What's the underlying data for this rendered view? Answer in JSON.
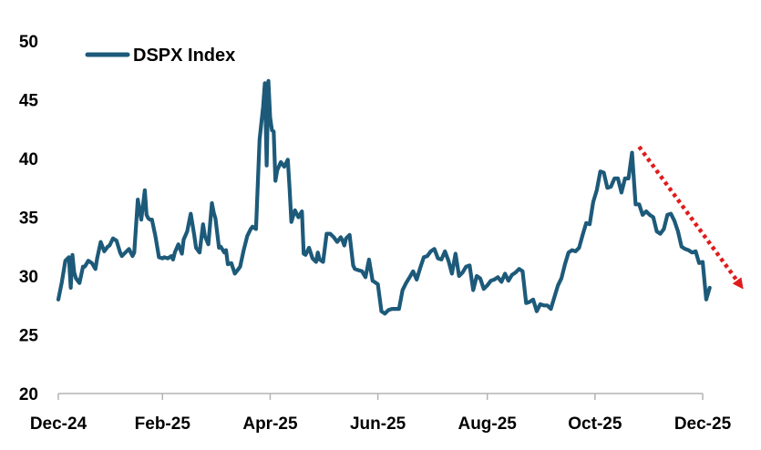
{
  "chart_data": {
    "type": "line",
    "title": "",
    "xlabel": "",
    "ylabel": "",
    "ylim": [
      20,
      50
    ],
    "yticks": [
      20,
      25,
      30,
      35,
      40,
      45,
      50
    ],
    "xlim": [
      "2024-12-31",
      "2025-12-31"
    ],
    "xticks": [
      {
        "date": "2024-12-31",
        "label": "Dec-24"
      },
      {
        "date": "2025-02-28",
        "label": "Feb-25"
      },
      {
        "date": "2025-04-30",
        "label": "Apr-25"
      },
      {
        "date": "2025-06-30",
        "label": "Jun-25"
      },
      {
        "date": "2025-08-31",
        "label": "Aug-25"
      },
      {
        "date": "2025-10-31",
        "label": "Oct-25"
      },
      {
        "date": "2025-12-31",
        "label": "Dec-25"
      }
    ],
    "grid": false,
    "legend": {
      "position": "top-left",
      "entries": [
        "DSPX Index"
      ]
    },
    "colors": {
      "series": "#1d5a7a",
      "trend_arrow": "#e11b1b",
      "axis": "#b3b3b3"
    },
    "annotations": [
      {
        "type": "dotted-arrow",
        "from": {
          "x": "2025-11-25",
          "y": 41
        },
        "to": {
          "x": "2026-01-20",
          "y": 29.5
        }
      }
    ],
    "series": [
      {
        "name": "DSPX Index",
        "x": [
          "2024-12-31",
          "2025-01-02",
          "2025-01-04",
          "2025-01-06",
          "2025-01-07",
          "2025-01-08",
          "2025-01-09",
          "2025-01-10",
          "2025-01-12",
          "2025-01-14",
          "2025-01-15",
          "2025-01-17",
          "2025-01-19",
          "2025-01-21",
          "2025-01-22",
          "2025-01-24",
          "2025-01-26",
          "2025-01-28",
          "2025-01-29",
          "2025-01-31",
          "2025-02-02",
          "2025-02-04",
          "2025-02-05",
          "2025-02-07",
          "2025-02-09",
          "2025-02-11",
          "2025-02-12",
          "2025-02-14",
          "2025-02-16",
          "2025-02-18",
          "2025-02-19",
          "2025-02-20",
          "2025-02-21",
          "2025-02-22",
          "2025-02-24",
          "2025-02-26",
          "2025-02-28",
          "2025-03-01",
          "2025-03-03",
          "2025-03-05",
          "2025-03-06",
          "2025-03-07",
          "2025-03-09",
          "2025-03-11",
          "2025-03-12",
          "2025-03-14",
          "2025-03-16",
          "2025-03-18",
          "2025-03-19",
          "2025-03-21",
          "2025-03-22",
          "2025-03-23",
          "2025-03-24",
          "2025-03-26",
          "2025-03-28",
          "2025-03-29",
          "2025-03-30",
          "2025-04-01",
          "2025-04-02",
          "2025-04-04",
          "2025-04-05",
          "2025-04-06",
          "2025-04-08",
          "2025-04-10",
          "2025-04-12",
          "2025-04-13",
          "2025-04-15",
          "2025-04-17",
          "2025-04-19",
          "2025-04-20",
          "2025-04-22",
          "2025-04-24",
          "2025-04-26",
          "2025-04-27",
          "2025-04-28",
          "2025-04-29",
          "2025-04-30",
          "2025-05-01",
          "2025-05-02",
          "2025-05-03",
          "2025-05-04",
          "2025-05-06",
          "2025-05-08",
          "2025-05-10",
          "2025-05-11",
          "2025-05-12",
          "2025-05-14",
          "2025-05-16",
          "2025-05-18",
          "2025-05-19",
          "2025-05-20",
          "2025-05-22",
          "2025-05-24",
          "2025-05-26",
          "2025-05-27",
          "2025-05-28",
          "2025-05-30",
          "2025-06-01",
          "2025-06-03",
          "2025-06-05",
          "2025-06-07",
          "2025-06-09",
          "2025-06-10",
          "2025-06-11",
          "2025-06-12",
          "2025-06-14",
          "2025-06-16",
          "2025-06-17",
          "2025-06-19",
          "2025-06-21",
          "2025-06-23",
          "2025-06-25",
          "2025-06-27",
          "2025-06-28",
          "2025-06-30",
          "2025-07-02",
          "2025-07-04",
          "2025-07-06",
          "2025-07-08",
          "2025-07-10",
          "2025-07-12",
          "2025-07-14",
          "2025-07-16",
          "2025-07-18",
          "2025-07-20",
          "2025-07-22",
          "2025-07-24",
          "2025-07-26",
          "2025-07-28",
          "2025-07-30",
          "2025-08-01",
          "2025-08-03",
          "2025-08-05",
          "2025-08-07",
          "2025-08-09",
          "2025-08-11",
          "2025-08-13",
          "2025-08-15",
          "2025-08-17",
          "2025-08-19",
          "2025-08-21",
          "2025-08-23",
          "2025-08-25",
          "2025-08-27",
          "2025-08-29",
          "2025-08-31",
          "2025-09-02",
          "2025-09-04",
          "2025-09-06",
          "2025-09-08",
          "2025-09-10",
          "2025-09-12",
          "2025-09-14",
          "2025-09-16",
          "2025-09-18",
          "2025-09-20",
          "2025-09-22",
          "2025-09-24",
          "2025-09-26",
          "2025-09-28",
          "2025-09-30",
          "2025-10-02",
          "2025-10-04",
          "2025-10-06",
          "2025-10-08",
          "2025-10-10",
          "2025-10-12",
          "2025-10-14",
          "2025-10-16",
          "2025-10-18",
          "2025-10-20",
          "2025-10-22",
          "2025-10-24",
          "2025-10-26",
          "2025-10-28",
          "2025-10-30",
          "2025-11-01",
          "2025-11-03",
          "2025-11-05",
          "2025-11-07",
          "2025-11-09",
          "2025-11-11",
          "2025-11-13",
          "2025-11-15",
          "2025-11-17",
          "2025-11-19",
          "2025-11-21",
          "2025-11-23",
          "2025-11-25",
          "2025-11-27",
          "2025-11-29",
          "2025-12-01",
          "2025-12-03",
          "2025-12-05",
          "2025-12-07",
          "2025-12-09",
          "2025-12-11",
          "2025-12-13",
          "2025-12-15",
          "2025-12-17",
          "2025-12-19",
          "2025-12-21",
          "2025-12-23",
          "2025-12-25",
          "2025-12-27",
          "2025-12-29",
          "2025-12-31",
          "2026-01-02",
          "2026-01-04"
        ],
        "values": [
          28.0,
          29.5,
          31.3,
          31.6,
          29.0,
          31.8,
          30.3,
          29.8,
          29.4,
          30.8,
          30.8,
          31.3,
          31.1,
          30.6,
          31.5,
          32.9,
          32.1,
          32.5,
          32.6,
          33.2,
          33.0,
          32.0,
          31.7,
          32.0,
          32.3,
          31.7,
          32.0,
          36.5,
          34.8,
          37.3,
          35.2,
          34.9,
          34.8,
          34.8,
          33.4,
          31.6,
          31.5,
          31.6,
          31.5,
          31.7,
          31.4,
          32.0,
          32.7,
          31.9,
          33.1,
          33.8,
          35.3,
          33.5,
          32.4,
          32.0,
          33.2,
          34.4,
          33.4,
          32.7,
          36.2,
          35.4,
          34.9,
          32.4,
          32.5,
          32.0,
          32.2,
          31.0,
          31.1,
          30.2,
          30.6,
          30.8,
          32.2,
          33.4,
          34.0,
          34.2,
          34.0,
          41.6,
          44.4,
          46.4,
          39.4,
          46.6,
          43.5,
          42.4,
          42.3,
          38.1,
          39.0,
          39.7,
          39.3,
          39.9,
          37.5,
          34.6,
          35.6,
          35.0,
          35.5,
          31.9,
          31.8,
          32.4,
          31.5,
          31.2,
          32.0,
          31.4,
          31.2,
          33.6,
          33.6,
          33.3,
          32.9,
          33.3,
          33.0,
          32.6,
          33.2,
          33.5,
          30.9,
          30.6,
          30.5,
          30.4,
          29.9,
          31.4,
          29.6,
          29.5,
          29.3,
          27.0,
          26.8,
          27.1,
          27.2,
          27.2,
          27.2,
          28.8,
          29.4,
          29.9,
          30.4,
          29.7,
          30.7,
          31.6,
          31.7,
          32.1,
          32.3,
          31.5,
          31.4,
          32.1,
          31.3,
          30.2,
          31.9,
          30.0,
          30.3,
          30.8,
          30.9,
          28.8,
          30.0,
          29.8,
          28.9,
          29.2,
          29.6,
          29.7,
          29.9,
          29.5,
          30.2,
          29.6,
          30.1,
          30.3,
          30.6,
          30.4,
          27.7,
          27.8,
          28.0,
          27.0,
          27.6,
          27.5,
          27.5,
          27.2,
          28.2,
          29.2,
          29.8,
          31.0,
          32.0,
          32.2,
          32.1,
          32.4,
          33.5,
          34.5,
          34.4,
          36.3,
          37.3,
          38.9,
          38.8,
          37.5,
          37.6,
          38.3,
          38.3,
          37.1,
          38.3,
          38.3,
          40.5,
          36.1,
          36.1,
          35.2,
          35.5,
          35.2,
          35.0,
          33.8,
          33.6,
          34.0,
          35.2,
          35.3,
          34.7,
          33.8,
          32.5,
          32.3,
          32.2,
          32.0,
          32.1,
          31.1,
          31.2,
          28.0,
          29.0
        ]
      }
    ]
  }
}
